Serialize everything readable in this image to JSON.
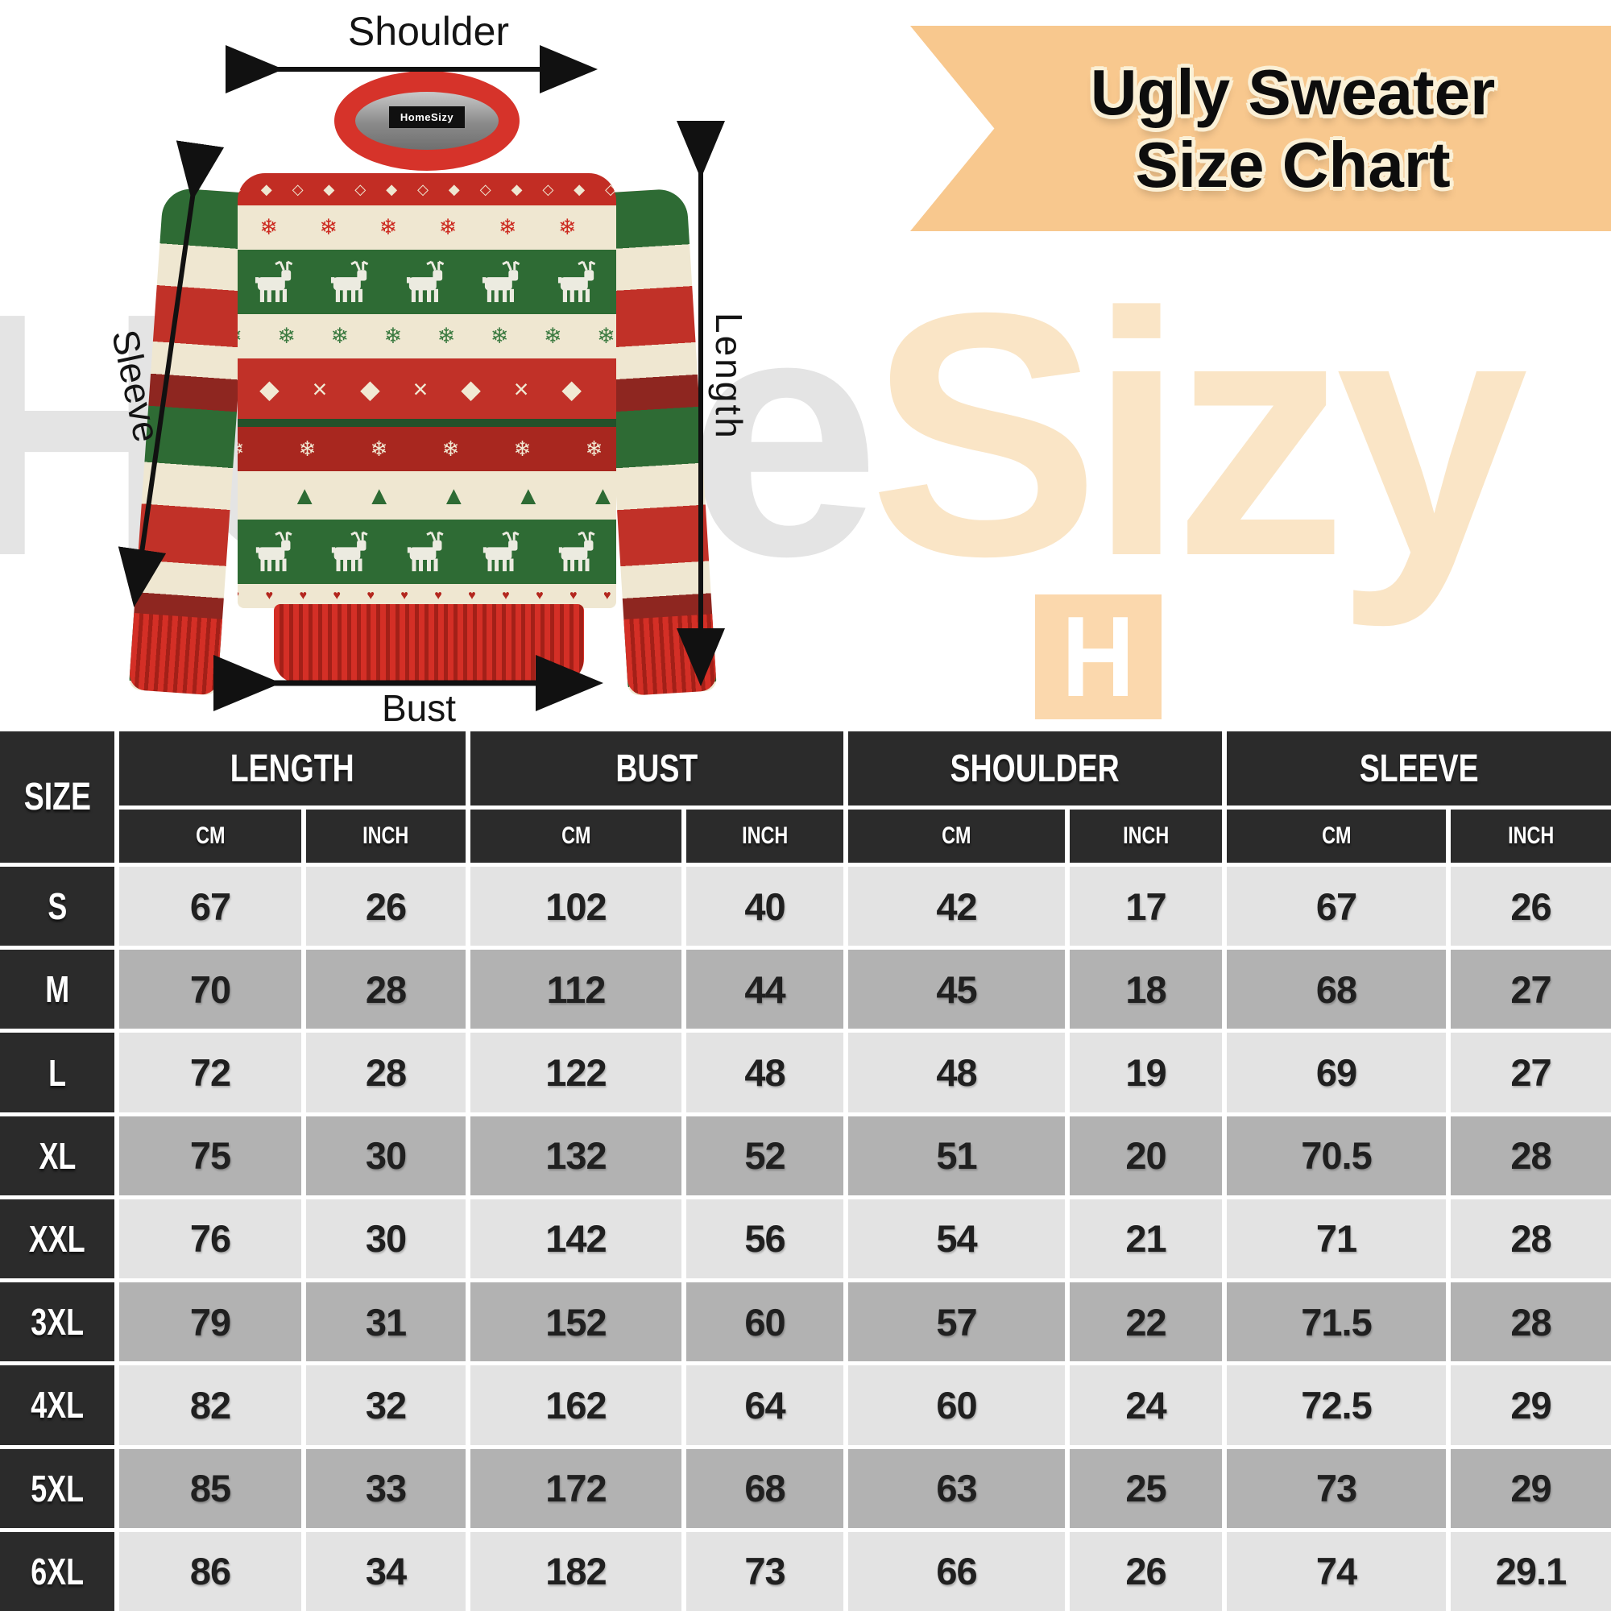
{
  "title": {
    "line1": "Ugly Sweater",
    "line2": "Size Chart"
  },
  "watermark": {
    "gray": "Home",
    "peach": "Sizy"
  },
  "logo_letter": "H",
  "sweater": {
    "collar_tag": "HomeSizy",
    "labels": {
      "shoulder": "Shoulder",
      "sleeve": "Sleeve",
      "length": "Length",
      "bust": "Bust"
    },
    "pattern": {
      "diamonds_small": "◇ ◆ ◇ ◆ ◇ ◆ ◇ ◆ ◇ ◆ ◇ ◆ ◇",
      "snowflakes_red": "❄ ❄ ❄ ❄ ❄ ❄ ❄ ❄",
      "snowflakes_green": "❄ ❄ ❄ ❄ ❄ ❄ ❄ ❄",
      "diamonds_cross": "◆ × ◆ × ◆ × ◆ × ◆ × ◆",
      "snowflakes_white": "❄ ❄ ❄ ❄ ❄ ❄",
      "trees": "▲ ▲ ▲ ▲ ▲ ▲ ▲ ▲",
      "hearts": "♥ ♥ ♥ ♥ ♥ ♥ ♥ ♥ ♥ ♥ ♥ ♥ ♥ ♥"
    }
  },
  "size_table": {
    "corner": "SIZE",
    "groups": [
      "LENGTH",
      "BUST",
      "SHOULDER",
      "SLEEVE"
    ],
    "units": [
      "CM",
      "INCH"
    ],
    "rows": [
      {
        "size": "S",
        "values": [
          "67",
          "26",
          "102",
          "40",
          "42",
          "17",
          "67",
          "26"
        ]
      },
      {
        "size": "M",
        "values": [
          "70",
          "28",
          "112",
          "44",
          "45",
          "18",
          "68",
          "27"
        ]
      },
      {
        "size": "L",
        "values": [
          "72",
          "28",
          "122",
          "48",
          "48",
          "19",
          "69",
          "27"
        ]
      },
      {
        "size": "XL",
        "values": [
          "75",
          "30",
          "132",
          "52",
          "51",
          "20",
          "70.5",
          "28"
        ]
      },
      {
        "size": "XXL",
        "values": [
          "76",
          "30",
          "142",
          "56",
          "54",
          "21",
          "71",
          "28"
        ]
      },
      {
        "size": "3XL",
        "values": [
          "79",
          "31",
          "152",
          "60",
          "57",
          "22",
          "71.5",
          "28"
        ]
      },
      {
        "size": "4XL",
        "values": [
          "82",
          "32",
          "162",
          "64",
          "60",
          "24",
          "72.5",
          "29"
        ]
      },
      {
        "size": "5XL",
        "values": [
          "85",
          "33",
          "172",
          "68",
          "63",
          "25",
          "73",
          "29"
        ]
      },
      {
        "size": "6XL",
        "values": [
          "86",
          "34",
          "182",
          "73",
          "66",
          "26",
          "74",
          "29.1"
        ]
      }
    ]
  },
  "chart_data": {
    "type": "table",
    "title": "Ugly Sweater Size Chart",
    "columns": [
      "SIZE",
      "LENGTH CM",
      "LENGTH INCH",
      "BUST CM",
      "BUST INCH",
      "SHOULDER CM",
      "SHOULDER INCH",
      "SLEEVE CM",
      "SLEEVE INCH"
    ],
    "rows": [
      [
        "S",
        67,
        26,
        102,
        40,
        42,
        17,
        67,
        26
      ],
      [
        "M",
        70,
        28,
        112,
        44,
        45,
        18,
        68,
        27
      ],
      [
        "L",
        72,
        28,
        122,
        48,
        48,
        19,
        69,
        27
      ],
      [
        "XL",
        75,
        30,
        132,
        52,
        51,
        20,
        70.5,
        28
      ],
      [
        "XXL",
        76,
        30,
        142,
        56,
        54,
        21,
        71,
        28
      ],
      [
        "3XL",
        79,
        31,
        152,
        60,
        57,
        22,
        71.5,
        28
      ],
      [
        "4XL",
        82,
        32,
        162,
        64,
        60,
        24,
        72.5,
        29
      ],
      [
        "5XL",
        85,
        33,
        172,
        68,
        63,
        25,
        73,
        29
      ],
      [
        "6XL",
        86,
        34,
        182,
        73,
        66,
        26,
        74,
        29.1
      ]
    ]
  },
  "colors": {
    "banner": "#f8c88e",
    "header_dark": "#2b2b2b",
    "row_light": "#e3e3e3",
    "row_dark": "#b2b2b2",
    "knit_red": "#c13128",
    "knit_green": "#2e6b34",
    "knit_cream": "#efe7d1"
  }
}
